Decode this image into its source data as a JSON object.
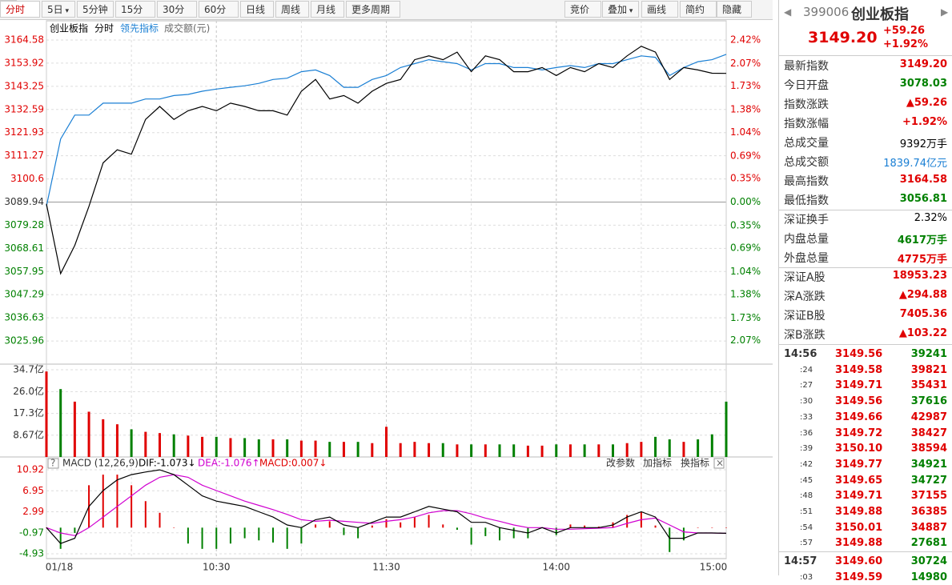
{
  "toolbar": {
    "left": [
      "分时",
      "5日",
      "5分钟",
      "15分钟",
      "30分钟",
      "60分钟",
      "日线",
      "周线",
      "月线",
      "更多周期"
    ],
    "right": [
      "竞价",
      "叠加",
      "画线",
      "简约",
      "隐藏"
    ]
  },
  "chart_data": [
    {
      "type": "line",
      "period": "分时",
      "volume_label": "成交额(元)",
      "series": [
        {
          "name": "创业板指",
          "color": "#000000",
          "values": [
            3089.1,
            3057,
            3070,
            3088,
            3108,
            3114,
            3112,
            3128,
            3134,
            3128,
            3132,
            3134,
            3132,
            3135.5,
            3134,
            3132,
            3132,
            3130,
            3141,
            3146.4,
            3137.4,
            3139,
            3135.5,
            3141,
            3144.6,
            3146.4,
            3155.5,
            3157.3,
            3155.5,
            3159,
            3150,
            3157.3,
            3155.5,
            3150,
            3150,
            3151.9,
            3148.2,
            3151.9,
            3150,
            3153.7,
            3151.9,
            3157.3,
            3161.7,
            3159,
            3146.4,
            3151.9,
            3150.8,
            3149.3,
            3149.2
          ]
        },
        {
          "name": "领先指标",
          "color": "#1a7fd4",
          "values": [
            3088,
            3119,
            3130,
            3130,
            3135.5,
            3135.5,
            3135.5,
            3137.4,
            3137.4,
            3139,
            3139.5,
            3141,
            3142,
            3142.8,
            3143.5,
            3144.6,
            3146.4,
            3147,
            3150,
            3150.8,
            3148.2,
            3142.8,
            3142.8,
            3146.4,
            3148.2,
            3151.9,
            3153.7,
            3155.5,
            3154.6,
            3153.7,
            3150.8,
            3153.7,
            3153.7,
            3151.9,
            3151.9,
            3150.8,
            3151.9,
            3152.8,
            3151.9,
            3153.7,
            3153.7,
            3155.5,
            3157.3,
            3156.6,
            3148.2,
            3151.9,
            3154.6,
            3155.5,
            3158
          ]
        }
      ],
      "x": [
        0,
        5,
        10,
        15,
        20,
        25,
        30,
        35,
        40,
        45,
        50,
        55,
        60,
        65,
        70,
        75,
        80,
        85,
        90,
        95,
        100,
        105,
        110,
        115,
        120,
        125,
        130,
        135,
        140,
        145,
        150,
        155,
        160,
        165,
        170,
        175,
        180,
        185,
        190,
        195,
        200,
        205,
        210,
        215,
        220,
        225,
        230,
        235,
        240
      ],
      "xlim": [
        0,
        240
      ],
      "xticks": [
        {
          "value": 0,
          "label": "01/18"
        },
        {
          "value": 60,
          "label": "10:30"
        },
        {
          "value": 120,
          "label": "11:30"
        },
        {
          "value": 180,
          "label": "14:00"
        },
        {
          "value": 240,
          "label": "15:00"
        }
      ],
      "ylim": [
        3015.3,
        3164.58
      ],
      "yticks": [
        3164.58,
        3153.92,
        3143.25,
        3132.59,
        3121.93,
        3111.27,
        3100.6,
        {
          "value": 3089.94,
          "label": "3089.94"
        },
        3079.28,
        3068.61,
        3057.95,
        3047.29,
        3036.63,
        3025.96
      ],
      "y2lim": [
        -2.42,
        2.42
      ],
      "y2ticks": [
        {
          "value": 2.42,
          "label": "2.42%"
        },
        {
          "value": 2.07,
          "label": "2.07%"
        },
        {
          "value": 1.73,
          "label": "1.73%"
        },
        {
          "value": 1.38,
          "label": "1.38%"
        },
        {
          "value": 1.04,
          "label": "1.04%"
        },
        {
          "value": 0.69,
          "label": "0.69%"
        },
        {
          "value": 0.35,
          "label": "0.35%"
        },
        {
          "value": 0,
          "label": "0.00%"
        },
        {
          "value": -0.35,
          "label": "0.35%"
        },
        {
          "value": -0.69,
          "label": "0.69%"
        },
        {
          "value": -1.04,
          "label": "1.04%"
        },
        {
          "value": -1.38,
          "label": "1.38%"
        },
        {
          "value": -1.73,
          "label": "1.73%"
        },
        {
          "value": -2.07,
          "label": "2.07%"
        }
      ],
      "grid": true,
      "up_color": "#e00000",
      "down_color": "#008000"
    },
    {
      "type": "bar",
      "values": [
        34,
        27,
        22,
        18,
        15,
        13,
        11,
        10,
        9.5,
        9,
        8.5,
        8,
        8,
        7.5,
        7.5,
        7,
        7,
        7,
        6.5,
        6.5,
        6,
        6,
        6,
        5.5,
        12,
        5.5,
        6,
        5.5,
        5.5,
        5,
        5,
        5,
        5,
        5,
        4.5,
        4.5,
        5,
        5,
        5,
        5,
        5,
        5.5,
        6,
        8,
        7,
        6,
        7,
        9,
        22
      ],
      "ylim": [
        0,
        34.7
      ],
      "yticks": [
        {
          "value": 34.7,
          "label": "34.7亿"
        },
        {
          "value": 26,
          "label": "26.0亿"
        },
        {
          "value": 17.3,
          "label": "17.3亿"
        },
        {
          "value": 8.67,
          "label": "8.67亿"
        }
      ],
      "up_color": "#e00000",
      "down_color": "#008000"
    },
    {
      "type": "macd",
      "title": "MACD (12,26,9)",
      "series": [
        {
          "label": "DIF:-1.073↓",
          "color": "#000000",
          "values": [
            0,
            -3,
            -2,
            4,
            7,
            9,
            10,
            10.5,
            10.9,
            10,
            8,
            6,
            5,
            4.5,
            4,
            3,
            2,
            0.5,
            0,
            1.5,
            2,
            0.5,
            0,
            1,
            2,
            2,
            3,
            4,
            3.5,
            3,
            1,
            1,
            0,
            -0.5,
            -1,
            0,
            -1,
            0,
            0,
            0,
            0.5,
            2,
            3,
            2,
            -2,
            -2,
            -1,
            -1,
            -1.073
          ]
        },
        {
          "label": "DEA:-1.076↑",
          "color": "#d000d0",
          "values": [
            0,
            -1,
            -1.5,
            0,
            2,
            4,
            6,
            8,
            9.5,
            10,
            9.5,
            8,
            7,
            6,
            5,
            4.2,
            3.4,
            2.5,
            1.5,
            1.2,
            1.4,
            1.2,
            1,
            0.8,
            1.2,
            1.5,
            2,
            2.8,
            3.2,
            3.2,
            2.6,
            1.8,
            1.2,
            0.5,
            0,
            0,
            -0.3,
            -0.3,
            -0.2,
            -0.1,
            0,
            0.8,
            1.5,
            1.8,
            0.5,
            -0.8,
            -1,
            -1,
            -1.076
          ]
        },
        {
          "label": "MACD:0.007↓",
          "color": "#e00000",
          "values": [
            0,
            -4,
            -1,
            8,
            10,
            10,
            8,
            5,
            2.8,
            0,
            -3,
            -4,
            -4,
            -3,
            -2,
            -2.4,
            -2.8,
            -4,
            -3,
            0.6,
            1.2,
            -1.4,
            -2,
            0.4,
            1.6,
            1,
            2,
            2.4,
            0.6,
            -0.4,
            -3.2,
            -1.6,
            -2.4,
            -2,
            -2,
            0,
            -1.4,
            0.6,
            0.4,
            0.2,
            1,
            2.4,
            3,
            0.4,
            -4.6,
            -2.4,
            0,
            0,
            0.007
          ]
        }
      ],
      "buttons": [
        "改参数",
        "加指标",
        "换指标"
      ],
      "ylim": [
        -4.93,
        10.92
      ],
      "yticks": [
        10.92,
        6.95,
        2.99,
        -0.97,
        -4.93
      ],
      "up_color": "#e00000",
      "down_color": "#008000"
    }
  ],
  "quote": {
    "code": "399006",
    "name": "创业板指",
    "price": "3149.20",
    "change": "+59.26",
    "change_pct": "+1.92%",
    "groups": [
      [
        {
          "label": "最新指数",
          "value": "3149.20",
          "color": "red"
        },
        {
          "label": "今日开盘",
          "value": "3078.03",
          "color": "green"
        },
        {
          "label": "指数涨跌",
          "value": "▲59.26",
          "color": "red"
        },
        {
          "label": "指数涨幅",
          "value": "+1.92%",
          "color": "red"
        },
        {
          "label": "总成交量",
          "value": "9392万手",
          "color": "black"
        },
        {
          "label": "总成交额",
          "value": "1839.74亿元",
          "color": "blue"
        },
        {
          "label": "最高指数",
          "value": "3164.58",
          "color": "red"
        },
        {
          "label": "最低指数",
          "value": "3056.81",
          "color": "green"
        }
      ],
      [
        {
          "label": "深证换手",
          "value": "2.32%",
          "color": "black"
        },
        {
          "label": "内盘总量",
          "value": "4617万手",
          "color": "green"
        },
        {
          "label": "外盘总量",
          "value": "4775万手",
          "color": "red"
        }
      ],
      [
        {
          "label": "深证A股",
          "value": "18953.23",
          "color": "red"
        },
        {
          "label": "深A涨跌",
          "value": "▲294.88",
          "color": "red"
        },
        {
          "label": "深证B股",
          "value": "7405.36",
          "color": "red"
        },
        {
          "label": "深B涨跌",
          "value": "▲103.22",
          "color": "red"
        }
      ]
    ],
    "trades": [
      {
        "time": "14:56",
        "price": "3149.56",
        "volume": "39241",
        "color": "green"
      },
      {
        "time": ":24",
        "price": "3149.58",
        "volume": "39821",
        "color": "red"
      },
      {
        "time": ":27",
        "price": "3149.71",
        "volume": "35431",
        "color": "red"
      },
      {
        "time": ":30",
        "price": "3149.56",
        "volume": "37616",
        "color": "green"
      },
      {
        "time": ":33",
        "price": "3149.66",
        "volume": "42987",
        "color": "red"
      },
      {
        "time": ":36",
        "price": "3149.72",
        "volume": "38427",
        "color": "red"
      },
      {
        "time": ":39",
        "price": "3150.10",
        "volume": "38594",
        "color": "red"
      },
      {
        "time": ":42",
        "price": "3149.77",
        "volume": "34921",
        "color": "green"
      },
      {
        "time": ":45",
        "price": "3149.65",
        "volume": "34727",
        "color": "green"
      },
      {
        "time": ":48",
        "price": "3149.71",
        "volume": "37155",
        "color": "red"
      },
      {
        "time": ":51",
        "price": "3149.88",
        "volume": "36385",
        "color": "red"
      },
      {
        "time": ":54",
        "price": "3150.01",
        "volume": "34887",
        "color": "red"
      },
      {
        "time": ":57",
        "price": "3149.88",
        "volume": "27681",
        "color": "green"
      },
      {
        "time": "14:57",
        "price": "3149.60",
        "volume": "30724",
        "color": "green"
      },
      {
        "time": ":03",
        "price": "3149.59",
        "volume": "14980",
        "color": "green"
      }
    ]
  }
}
